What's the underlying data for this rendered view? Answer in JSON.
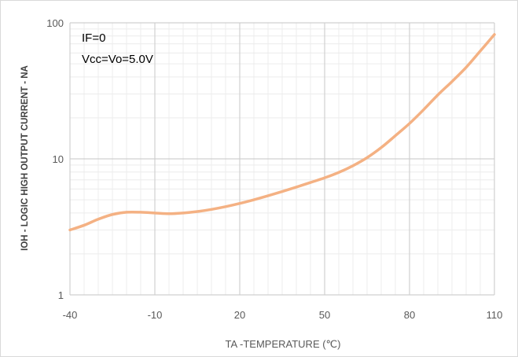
{
  "chart_data": {
    "type": "line",
    "title": "",
    "xlabel": "TA -TEMPERATURE (℃)",
    "ylabel": "IOH - LOGIC HIGH OUTPUT CURRENT - NA",
    "xlim": [
      -40,
      110
    ],
    "ylim": [
      1,
      100
    ],
    "yscale": "log",
    "grid": true,
    "xticks": [
      "-40",
      "-10",
      "20",
      "50",
      "80",
      "110"
    ],
    "yticks": [
      "1",
      "10",
      "100"
    ],
    "annotations": [
      "IF=0",
      "Vcc=Vo=5.0V"
    ],
    "series": [
      {
        "color": "#F4B183",
        "x": [
          -40,
          -35,
          -30,
          -25,
          -20,
          -15,
          -10,
          -5,
          0,
          5,
          10,
          15,
          20,
          25,
          30,
          35,
          40,
          45,
          50,
          55,
          60,
          65,
          70,
          75,
          80,
          85,
          90,
          95,
          100,
          105,
          110
        ],
        "y": [
          3.0,
          3.25,
          3.6,
          3.9,
          4.05,
          4.05,
          4.0,
          3.95,
          4.0,
          4.1,
          4.25,
          4.45,
          4.7,
          5.0,
          5.35,
          5.75,
          6.2,
          6.7,
          7.25,
          7.95,
          8.9,
          10.2,
          12.1,
          14.8,
          18.2,
          23.0,
          29.5,
          37.0,
          47.0,
          62.0,
          82.0
        ]
      }
    ]
  }
}
